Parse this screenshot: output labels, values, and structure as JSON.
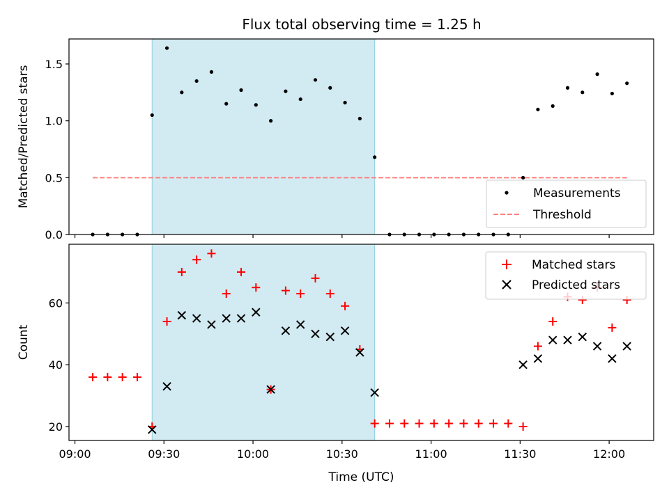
{
  "figure": {
    "title": "Flux total observing time = 1.25 h"
  },
  "colors": {
    "shade": "#add8e6",
    "measurement": "#000000",
    "threshold": "#ff7f7f",
    "matched": "#ff0000",
    "predicted": "#000000"
  },
  "chart_data": [
    {
      "type": "scatter",
      "panel": "top",
      "xlabel": "",
      "ylabel": "Matched/Predicted stars",
      "xlim": [
        "08:58",
        "12:15"
      ],
      "ylim": [
        0,
        1.72
      ],
      "yticks": [
        0.0,
        0.5,
        1.0,
        1.5
      ],
      "ytick_labels": [
        "0.0",
        "0.5",
        "1.0",
        "1.5"
      ],
      "xticks": [
        "09:00",
        "09:30",
        "10:00",
        "10:30",
        "11:00",
        "11:30",
        "12:00"
      ],
      "shaded_span": [
        "09:26",
        "10:41"
      ],
      "legend_position": "lower-right",
      "series": [
        {
          "name": "Measurements",
          "kind": "points",
          "x": [
            "09:06",
            "09:11",
            "09:16",
            "09:21",
            "09:26",
            "09:31",
            "09:36",
            "09:41",
            "09:46",
            "09:51",
            "09:56",
            "10:01",
            "10:06",
            "10:11",
            "10:16",
            "10:21",
            "10:26",
            "10:31",
            "10:36",
            "10:41",
            "10:46",
            "10:51",
            "10:56",
            "11:01",
            "11:06",
            "11:11",
            "11:16",
            "11:21",
            "11:26",
            "11:31",
            "11:36",
            "11:41",
            "11:46",
            "11:51",
            "11:56",
            "12:01",
            "12:06"
          ],
          "y": [
            0,
            0,
            0,
            0,
            1.05,
            1.64,
            1.25,
            1.35,
            1.43,
            1.15,
            1.27,
            1.14,
            1.0,
            1.26,
            1.19,
            1.36,
            1.29,
            1.16,
            1.02,
            0.68,
            0,
            0,
            0,
            0,
            0,
            0,
            0,
            0,
            0,
            0.5,
            1.1,
            1.13,
            1.29,
            1.25,
            1.41,
            1.24,
            1.33
          ]
        },
        {
          "name": "Threshold",
          "kind": "dashed-line",
          "x": [
            "09:06",
            "12:06"
          ],
          "y": [
            0.5,
            0.5
          ]
        }
      ]
    },
    {
      "type": "scatter",
      "panel": "bottom",
      "xlabel": "Time (UTC)",
      "ylabel": "Count",
      "xlim": [
        "08:58",
        "12:15"
      ],
      "ylim": [
        15.5,
        79
      ],
      "yticks": [
        20,
        40,
        60
      ],
      "ytick_labels": [
        "20",
        "40",
        "60"
      ],
      "xticks": [
        "09:00",
        "09:30",
        "10:00",
        "10:30",
        "11:00",
        "11:30",
        "12:00"
      ],
      "xtick_labels": [
        "09:00",
        "09:30",
        "10:00",
        "10:30",
        "11:00",
        "11:30",
        "12:00"
      ],
      "shaded_span": [
        "09:26",
        "10:41"
      ],
      "legend_position": "upper-right",
      "series": [
        {
          "name": "Matched stars",
          "marker": "plus",
          "x": [
            "09:06",
            "09:11",
            "09:16",
            "09:21",
            "09:26",
            "09:31",
            "09:36",
            "09:41",
            "09:46",
            "09:51",
            "09:56",
            "10:01",
            "10:06",
            "10:11",
            "10:16",
            "10:21",
            "10:26",
            "10:31",
            "10:36",
            "10:41",
            "10:46",
            "10:51",
            "10:56",
            "11:01",
            "11:06",
            "11:11",
            "11:16",
            "11:21",
            "11:26",
            "11:31",
            "11:36",
            "11:41",
            "11:46",
            "11:51",
            "11:56",
            "12:01",
            "12:06"
          ],
          "y": [
            36,
            36,
            36,
            36,
            20,
            54,
            70,
            74,
            76,
            63,
            70,
            65,
            32,
            64,
            63,
            68,
            63,
            59,
            45,
            21,
            21,
            21,
            21,
            21,
            21,
            21,
            21,
            21,
            21,
            20,
            46,
            54,
            62,
            61,
            65,
            52,
            61
          ]
        },
        {
          "name": "Predicted stars",
          "marker": "x",
          "x": [
            "09:26",
            "09:31",
            "09:36",
            "09:41",
            "09:46",
            "09:51",
            "09:56",
            "10:01",
            "10:06",
            "10:11",
            "10:16",
            "10:21",
            "10:26",
            "10:31",
            "10:36",
            "10:41",
            "11:31",
            "11:36",
            "11:41",
            "11:46",
            "11:51",
            "11:56",
            "12:01",
            "12:06"
          ],
          "y": [
            19,
            33,
            56,
            55,
            53,
            55,
            55,
            57,
            32,
            51,
            53,
            50,
            49,
            51,
            44,
            31,
            40,
            42,
            48,
            48,
            49,
            46,
            42,
            46
          ]
        }
      ]
    }
  ]
}
